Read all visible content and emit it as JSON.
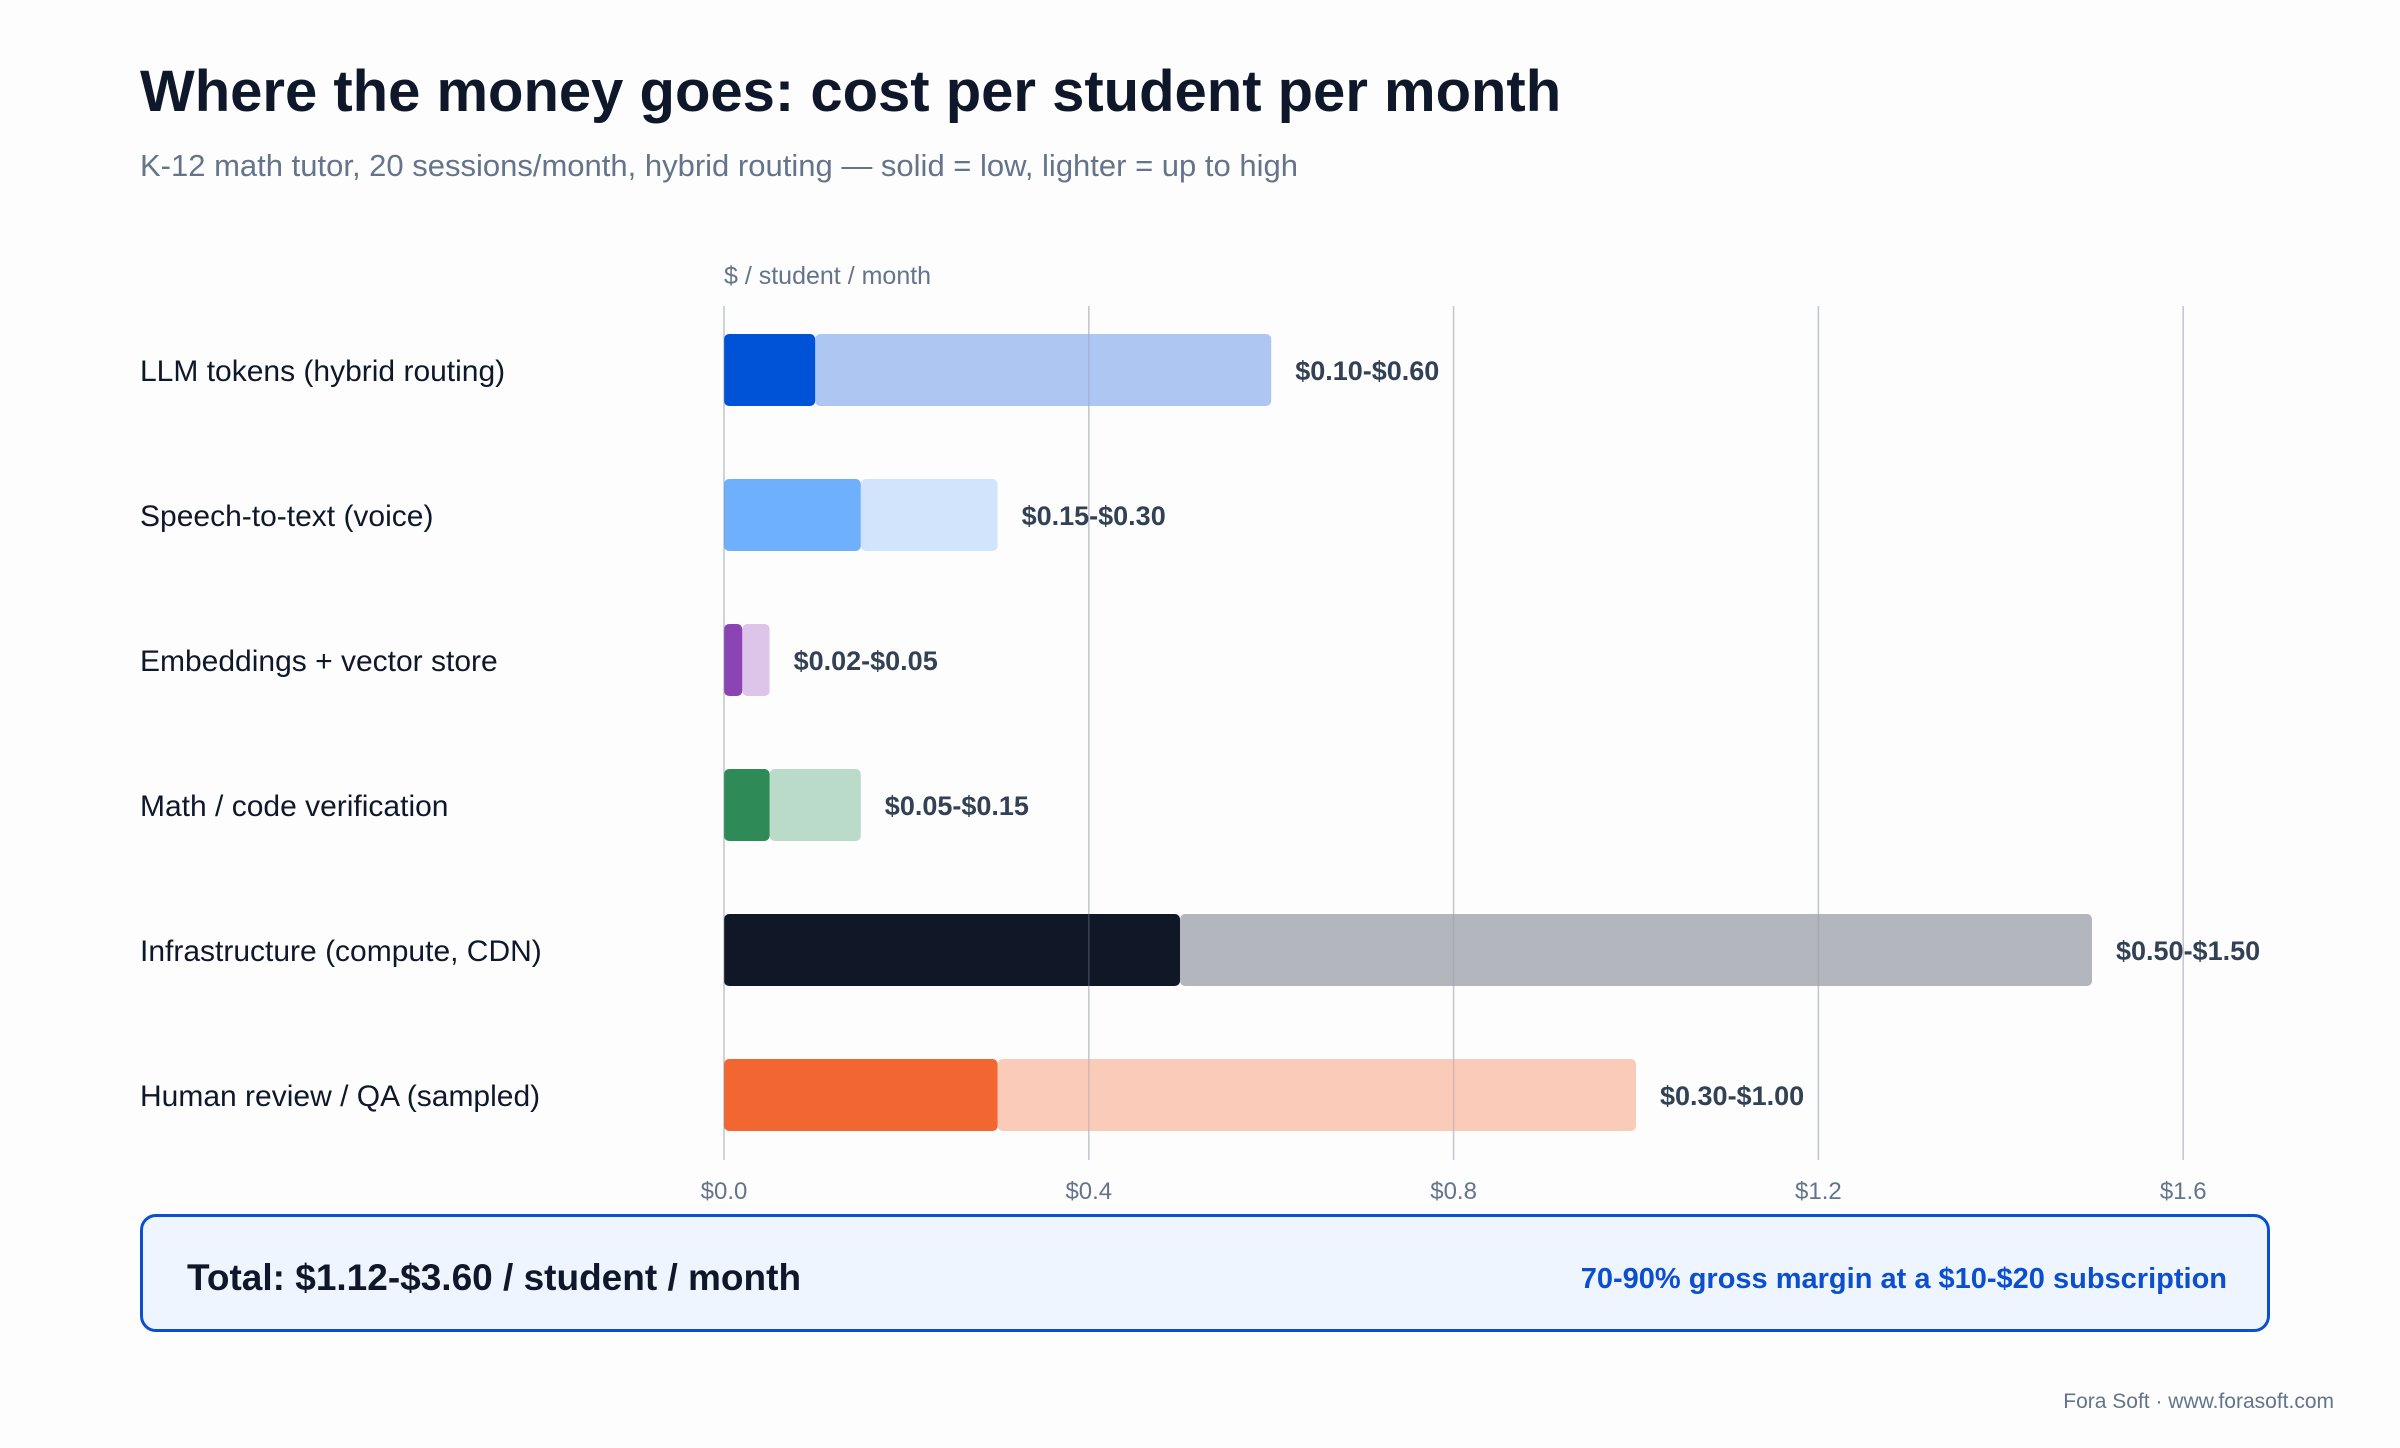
{
  "header": {
    "title": "Where the money goes: cost per student per month",
    "subtitle": "K-12 math tutor, 20 sessions/month, hybrid routing — solid = low, lighter = up to high"
  },
  "chart_data": {
    "type": "bar",
    "orientation": "horizontal",
    "style": "range",
    "xlabel": "$ / student / month",
    "xlim": [
      0,
      1.7
    ],
    "x_ticks": [
      0.0,
      0.4,
      0.8,
      1.2,
      1.6
    ],
    "x_tick_labels": [
      "$0.0",
      "$0.4",
      "$0.8",
      "$1.2",
      "$1.6"
    ],
    "grid": true,
    "categories": [
      "LLM tokens (hybrid routing)",
      "Speech-to-text (voice)",
      "Embeddings + vector store",
      "Math / code verification",
      "Infrastructure (compute, CDN)",
      "Human review / QA (sampled)"
    ],
    "series": [
      {
        "name": "low",
        "values": [
          0.1,
          0.15,
          0.02,
          0.05,
          0.5,
          0.3
        ]
      },
      {
        "name": "high",
        "values": [
          0.6,
          0.3,
          0.05,
          0.15,
          1.5,
          1.0
        ]
      }
    ],
    "value_labels": [
      "$0.10-$0.60",
      "$0.15-$0.30",
      "$0.02-$0.05",
      "$0.05-$0.15",
      "$0.50-$1.50",
      "$0.30-$1.00"
    ],
    "colors_solid": [
      "#0052d6",
      "#6eb0fb",
      "#8a44b3",
      "#2e8a57",
      "#101828",
      "#f26631"
    ],
    "colors_light": [
      "#aec6f2",
      "#d1e4fc",
      "#dcc5e9",
      "#bbdbca",
      "#b3b6bc",
      "#fbcbb9"
    ]
  },
  "summary": {
    "total": "Total: $1.12-$3.60 / student / month",
    "margin": "70-90% gross margin at a $10-$20 subscription",
    "accent_color": "#0b4fd0"
  },
  "footer": {
    "credit": "Fora Soft · www.forasoft.com"
  }
}
